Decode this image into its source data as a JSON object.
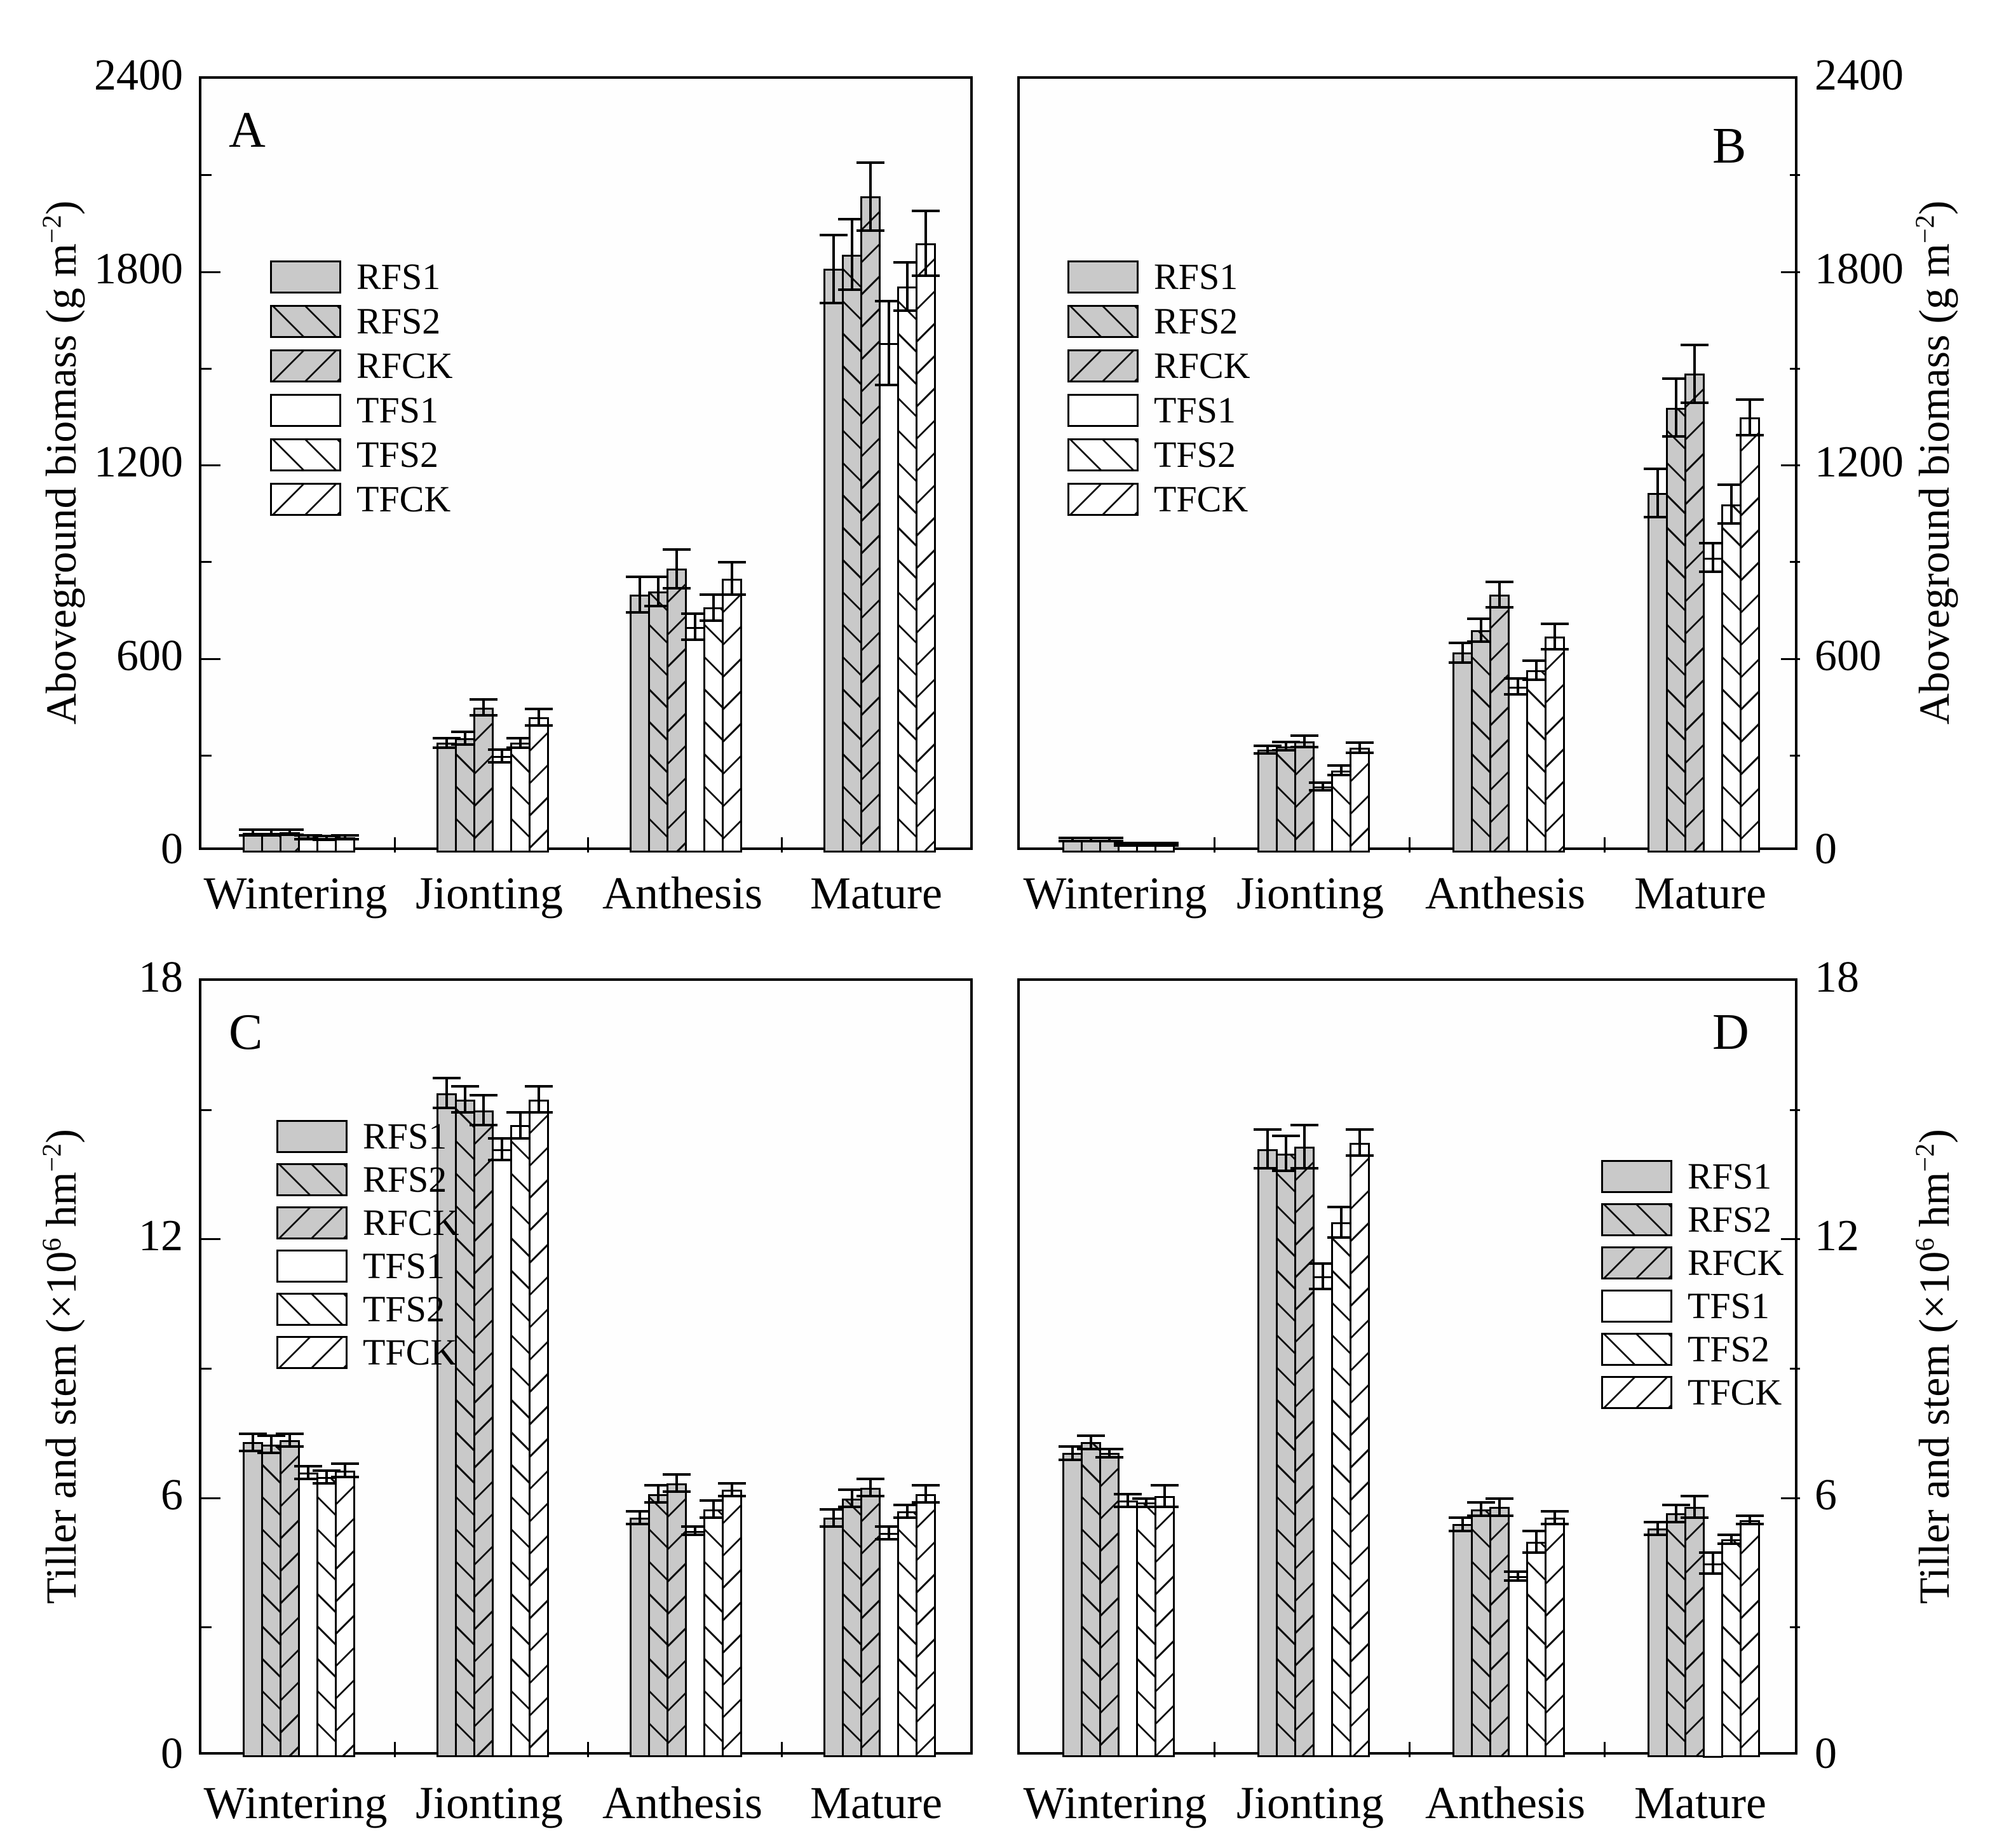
{
  "figure": {
    "background": "#ffffff",
    "bar_gray": "#c9c9c9",
    "bar_white": "#ffffff",
    "line_color": "#000000",
    "categories": [
      "Wintering",
      "Jionting",
      "Anthesis",
      "Mature"
    ],
    "series": [
      {
        "label": "RFS1",
        "fill": "gray",
        "hatch": "none"
      },
      {
        "label": "RFS2",
        "fill": "gray",
        "hatch": "back"
      },
      {
        "label": "RFCK",
        "fill": "gray",
        "hatch": "fwd"
      },
      {
        "label": "TFS1",
        "fill": "white",
        "hatch": "none"
      },
      {
        "label": "TFS2",
        "fill": "white",
        "hatch": "back"
      },
      {
        "label": "TFCK",
        "fill": "white",
        "hatch": "fwd"
      }
    ]
  },
  "chart_data": [
    {
      "panel": "A",
      "type": "bar",
      "ylabel": "Aboveground biomass (g m−2)",
      "ylabel_parts": [
        {
          "t": "txt",
          "v": "Aboveground biomass (g m"
        },
        {
          "t": "sup",
          "v": "−2"
        },
        {
          "t": "txt",
          "v": ")"
        }
      ],
      "ylim": [
        0,
        2400
      ],
      "yticks": [
        0,
        600,
        1200,
        1800,
        2400
      ],
      "ytick_labels": [
        "0",
        "600",
        "1200",
        "1800",
        "2400"
      ],
      "grid": false,
      "legend_position": "upper-left-inside",
      "categories": [
        "Wintering",
        "Jionting",
        "Anthesis",
        "Mature"
      ],
      "series": [
        {
          "name": "RFS1",
          "values": [
            62,
            340,
            800,
            1810
          ],
          "errors": [
            8,
            15,
            55,
            105
          ]
        },
        {
          "name": "RFS2",
          "values": [
            62,
            355,
            810,
            1855
          ],
          "errors": [
            8,
            20,
            45,
            110
          ]
        },
        {
          "name": "RFCK",
          "values": [
            63,
            450,
            880,
            2035
          ],
          "errors": [
            8,
            25,
            60,
            105
          ]
        },
        {
          "name": "TFS1",
          "values": [
            48,
            300,
            700,
            1580
          ],
          "errors": [
            6,
            20,
            40,
            130
          ]
        },
        {
          "name": "TFS2",
          "values": [
            46,
            340,
            760,
            1755
          ],
          "errors": [
            6,
            15,
            40,
            75
          ]
        },
        {
          "name": "TFCK",
          "values": [
            48,
            420,
            850,
            1890
          ],
          "errors": [
            6,
            25,
            50,
            100
          ]
        }
      ]
    },
    {
      "panel": "B",
      "type": "bar",
      "ylabel": "Aboveground biomass (g m−2)",
      "ylabel_parts": [
        {
          "t": "txt",
          "v": "Aboveground biomass (g m"
        },
        {
          "t": "sup",
          "v": "−2"
        },
        {
          "t": "txt",
          "v": ")"
        }
      ],
      "ylim": [
        0,
        2400
      ],
      "yticks": [
        0,
        600,
        1200,
        1800,
        2400
      ],
      "ytick_labels": [
        "0",
        "600",
        "1200",
        "1800",
        "2400"
      ],
      "grid": false,
      "legend_position": "upper-left-inside",
      "categories": [
        "Wintering",
        "Jionting",
        "Anthesis",
        "Mature"
      ],
      "series": [
        {
          "name": "RFS1",
          "values": [
            40,
            320,
            620,
            1115
          ],
          "errors": [
            5,
            12,
            30,
            75
          ]
        },
        {
          "name": "RFS2",
          "values": [
            40,
            330,
            690,
            1380
          ],
          "errors": [
            5,
            12,
            35,
            90
          ]
        },
        {
          "name": "RFCK",
          "values": [
            40,
            345,
            800,
            1485
          ],
          "errors": [
            5,
            18,
            40,
            90
          ]
        },
        {
          "name": "TFS1",
          "values": [
            25,
            205,
            515,
            915
          ],
          "errors": [
            4,
            12,
            25,
            45
          ]
        },
        {
          "name": "TFS2",
          "values": [
            25,
            255,
            565,
            1080
          ],
          "errors": [
            4,
            15,
            30,
            60
          ]
        },
        {
          "name": "TFCK",
          "values": [
            26,
            325,
            670,
            1350
          ],
          "errors": [
            4,
            15,
            40,
            55
          ]
        }
      ]
    },
    {
      "panel": "C",
      "type": "bar",
      "ylabel": "Tiller and stem (×106 hm−2)",
      "ylabel_parts": [
        {
          "t": "txt",
          "v": "Tiller and stem (×10"
        },
        {
          "t": "sup",
          "v": "6"
        },
        {
          "t": "txt",
          "v": " hm"
        },
        {
          "t": "sup",
          "v": "−2"
        },
        {
          "t": "txt",
          "v": ")"
        }
      ],
      "ylim": [
        0,
        18
      ],
      "yticks": [
        0,
        6,
        12,
        18
      ],
      "ytick_labels": [
        "0",
        "6",
        "12",
        "18"
      ],
      "grid": false,
      "legend_position": "upper-left-inside",
      "categories": [
        "Wintering",
        "Jionting",
        "Anthesis",
        "Mature"
      ],
      "series": [
        {
          "name": "RFS1",
          "values": [
            7.3,
            15.4,
            5.55,
            5.55
          ],
          "errors": [
            0.2,
            0.35,
            0.15,
            0.2
          ]
        },
        {
          "name": "RFS2",
          "values": [
            7.25,
            15.25,
            6.1,
            6.0
          ],
          "errors": [
            0.2,
            0.3,
            0.2,
            0.2
          ]
        },
        {
          "name": "RFCK",
          "values": [
            7.35,
            15.0,
            6.35,
            6.25
          ],
          "errors": [
            0.15,
            0.35,
            0.2,
            0.2
          ]
        },
        {
          "name": "TFS1",
          "values": [
            6.6,
            14.1,
            5.25,
            5.2
          ],
          "errors": [
            0.15,
            0.25,
            0.1,
            0.15
          ]
        },
        {
          "name": "TFS2",
          "values": [
            6.5,
            14.65,
            5.75,
            5.7
          ],
          "errors": [
            0.15,
            0.3,
            0.2,
            0.15
          ]
        },
        {
          "name": "TFCK",
          "values": [
            6.65,
            15.25,
            6.2,
            6.1
          ],
          "errors": [
            0.15,
            0.3,
            0.15,
            0.2
          ]
        }
      ]
    },
    {
      "panel": "D",
      "type": "bar",
      "ylabel": "Tiller and stem (×106 hm−2)",
      "ylabel_parts": [
        {
          "t": "txt",
          "v": "Tiller and stem (×10"
        },
        {
          "t": "sup",
          "v": "6"
        },
        {
          "t": "txt",
          "v": " hm"
        },
        {
          "t": "sup",
          "v": "−2"
        },
        {
          "t": "txt",
          "v": ")"
        }
      ],
      "ylim": [
        0,
        18
      ],
      "yticks": [
        0,
        6,
        12,
        18
      ],
      "ytick_labels": [
        "0",
        "6",
        "12",
        "18"
      ],
      "grid": false,
      "legend_position": "middle-right-inside",
      "categories": [
        "Wintering",
        "Jionting",
        "Anthesis",
        "Mature"
      ],
      "series": [
        {
          "name": "RFS1",
          "values": [
            7.05,
            14.1,
            5.4,
            5.3
          ],
          "errors": [
            0.15,
            0.45,
            0.15,
            0.15
          ]
        },
        {
          "name": "RFS2",
          "values": [
            7.3,
            14.0,
            5.75,
            5.65
          ],
          "errors": [
            0.15,
            0.4,
            0.15,
            0.2
          ]
        },
        {
          "name": "RFCK",
          "values": [
            7.05,
            14.15,
            5.8,
            5.8
          ],
          "errors": [
            0.1,
            0.5,
            0.2,
            0.25
          ]
        },
        {
          "name": "TFS1",
          "values": [
            5.95,
            11.15,
            4.2,
            4.5
          ],
          "errors": [
            0.15,
            0.3,
            0.1,
            0.25
          ]
        },
        {
          "name": "TFS2",
          "values": [
            5.9,
            12.4,
            5.0,
            5.05
          ],
          "errors": [
            0.1,
            0.35,
            0.25,
            0.1
          ]
        },
        {
          "name": "TFCK",
          "values": [
            6.05,
            14.25,
            5.55,
            5.5
          ],
          "errors": [
            0.25,
            0.3,
            0.15,
            0.1
          ]
        }
      ]
    }
  ]
}
